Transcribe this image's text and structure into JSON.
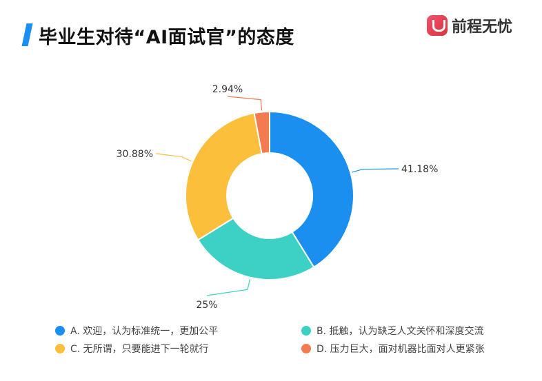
{
  "title": "毕业生对待“AI面试官”的态度",
  "logo": {
    "text": "前程无忧",
    "color": "#e0414f"
  },
  "accent": "#1a8fef",
  "chart_data": {
    "type": "pie",
    "donut": true,
    "categories": [
      "A. 欢迎，认为标准统一，更加公平",
      "B. 抵触，认为缺乏人文关怀和深度交流",
      "C. 无所谓，只要能进下一轮就行",
      "D. 压力巨大，面对机器比面对人更紧张"
    ],
    "values": [
      41.18,
      25,
      30.88,
      2.94
    ],
    "data_labels": [
      "41.18%",
      "25%",
      "30.88%",
      "2.94%"
    ],
    "colors": [
      "#1a8fef",
      "#3dd1c6",
      "#fbbf3c",
      "#f47a4f"
    ],
    "legend_position": "bottom"
  }
}
